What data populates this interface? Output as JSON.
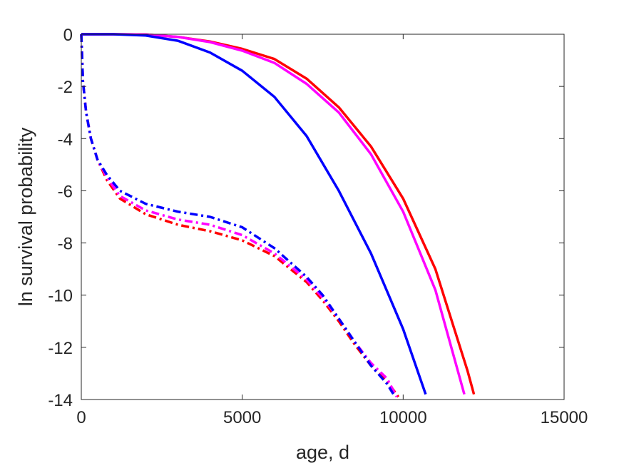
{
  "chart_data": {
    "type": "line",
    "title": "",
    "xlabel": "age, d",
    "ylabel": "ln survival probability",
    "xlim": [
      0,
      15000
    ],
    "ylim": [
      -14,
      0
    ],
    "xticks": [
      0,
      5000,
      10000,
      15000
    ],
    "yticks": [
      0,
      -2,
      -4,
      -6,
      -8,
      -10,
      -12,
      -14
    ],
    "xtick_labels": [
      "0",
      "5000",
      "10000",
      "15000"
    ],
    "ytick_labels": [
      "0",
      "-2",
      "-4",
      "-6",
      "-8",
      "-10",
      "-12",
      "-14"
    ],
    "grid": false,
    "legend": "none",
    "series": [
      {
        "color": "#ff0000",
        "style": "solid",
        "x": [
          0,
          1000,
          2000,
          3000,
          4000,
          5000,
          6000,
          7000,
          8000,
          9000,
          10000,
          11000,
          12000,
          12200
        ],
        "y": [
          0,
          0,
          -0.01,
          -0.1,
          -0.28,
          -0.56,
          -0.95,
          -1.7,
          -2.8,
          -4.3,
          -6.3,
          -9.0,
          -12.9,
          -13.8
        ]
      },
      {
        "color": "#ff00ff",
        "style": "solid",
        "x": [
          0,
          1000,
          2000,
          3000,
          4000,
          5000,
          6000,
          7000,
          8000,
          9000,
          10000,
          11000,
          11900
        ],
        "y": [
          0,
          0,
          -0.01,
          -0.1,
          -0.3,
          -0.63,
          -1.1,
          -1.9,
          -3.0,
          -4.6,
          -6.8,
          -9.8,
          -13.8
        ]
      },
      {
        "color": "#0000ff",
        "style": "solid",
        "x": [
          0,
          1000,
          2000,
          3000,
          4000,
          5000,
          6000,
          7000,
          8000,
          9000,
          10000,
          10700
        ],
        "y": [
          0,
          0,
          -0.05,
          -0.25,
          -0.7,
          -1.4,
          -2.4,
          -3.9,
          -6.0,
          -8.4,
          -11.3,
          -13.8
        ]
      },
      {
        "color": "#ff0000",
        "style": "dashdot",
        "x": [
          0,
          50,
          150,
          300,
          500,
          800,
          1200,
          2000,
          3000,
          4000,
          5000,
          6000,
          7000,
          7500,
          8000,
          8500,
          9000,
          9500,
          9850
        ],
        "y": [
          0,
          -1.8,
          -3.0,
          -4.0,
          -4.8,
          -5.6,
          -6.3,
          -6.9,
          -7.3,
          -7.55,
          -7.9,
          -8.5,
          -9.5,
          -10.2,
          -11.0,
          -11.9,
          -12.7,
          -13.3,
          -13.9
        ]
      },
      {
        "color": "#ff00ff",
        "style": "dashdot",
        "x": [
          0,
          50,
          150,
          300,
          500,
          800,
          1200,
          2000,
          3000,
          4000,
          5000,
          6000,
          7000,
          7500,
          8000,
          8500,
          9000,
          9500,
          9800
        ],
        "y": [
          0,
          -1.8,
          -3.0,
          -4.0,
          -4.8,
          -5.5,
          -6.2,
          -6.75,
          -7.1,
          -7.3,
          -7.7,
          -8.4,
          -9.4,
          -10.1,
          -10.9,
          -11.8,
          -12.6,
          -13.2,
          -13.9
        ]
      },
      {
        "color": "#0000ff",
        "style": "dashdot",
        "x": [
          0,
          50,
          150,
          300,
          500,
          800,
          1200,
          2000,
          3000,
          4000,
          5000,
          6000,
          7000,
          7500,
          8000,
          8500,
          9000,
          9500,
          9700
        ],
        "y": [
          0,
          -1.8,
          -3.0,
          -4.0,
          -4.8,
          -5.4,
          -6.0,
          -6.5,
          -6.8,
          -7.0,
          -7.4,
          -8.2,
          -9.3,
          -10.0,
          -10.9,
          -11.8,
          -12.7,
          -13.4,
          -13.8
        ]
      }
    ]
  }
}
